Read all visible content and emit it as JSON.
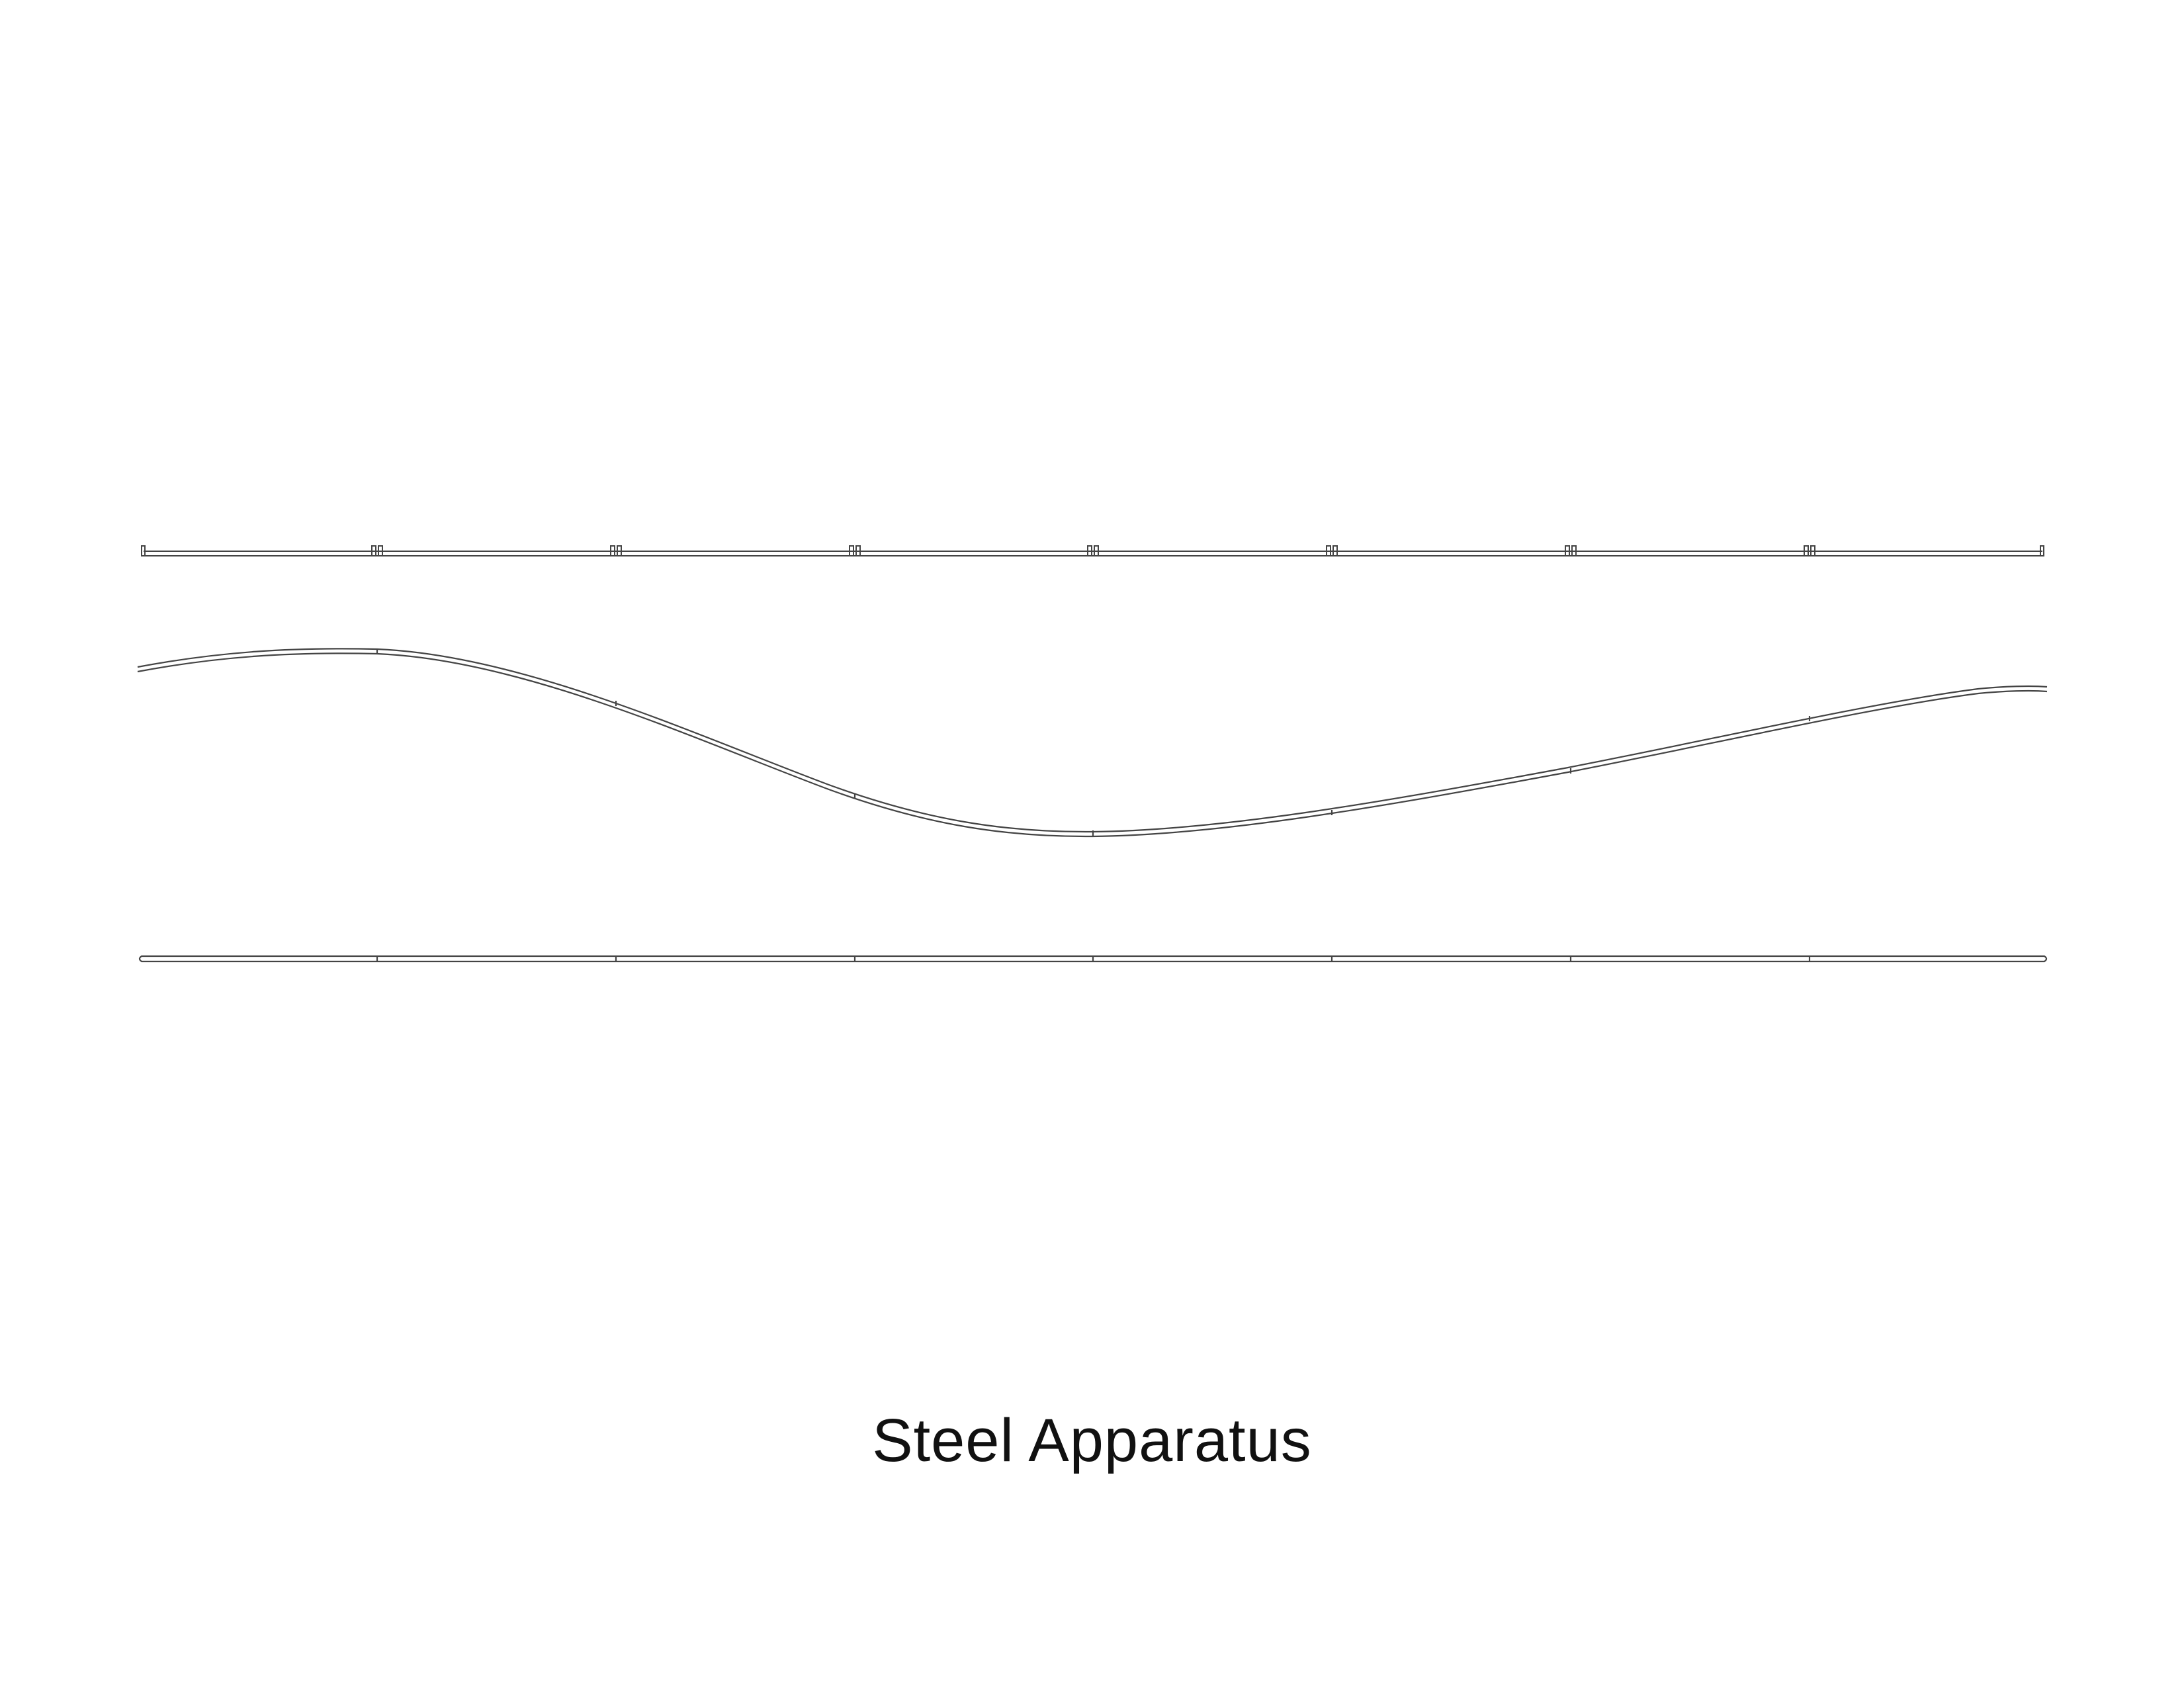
{
  "caption": "Steel Apparatus",
  "colors": {
    "line": "#444444",
    "background": "#ffffff",
    "text": "#111111"
  },
  "components": [
    {
      "name": "top-rail"
    },
    {
      "name": "curved-rail"
    },
    {
      "name": "bottom-rail"
    }
  ]
}
